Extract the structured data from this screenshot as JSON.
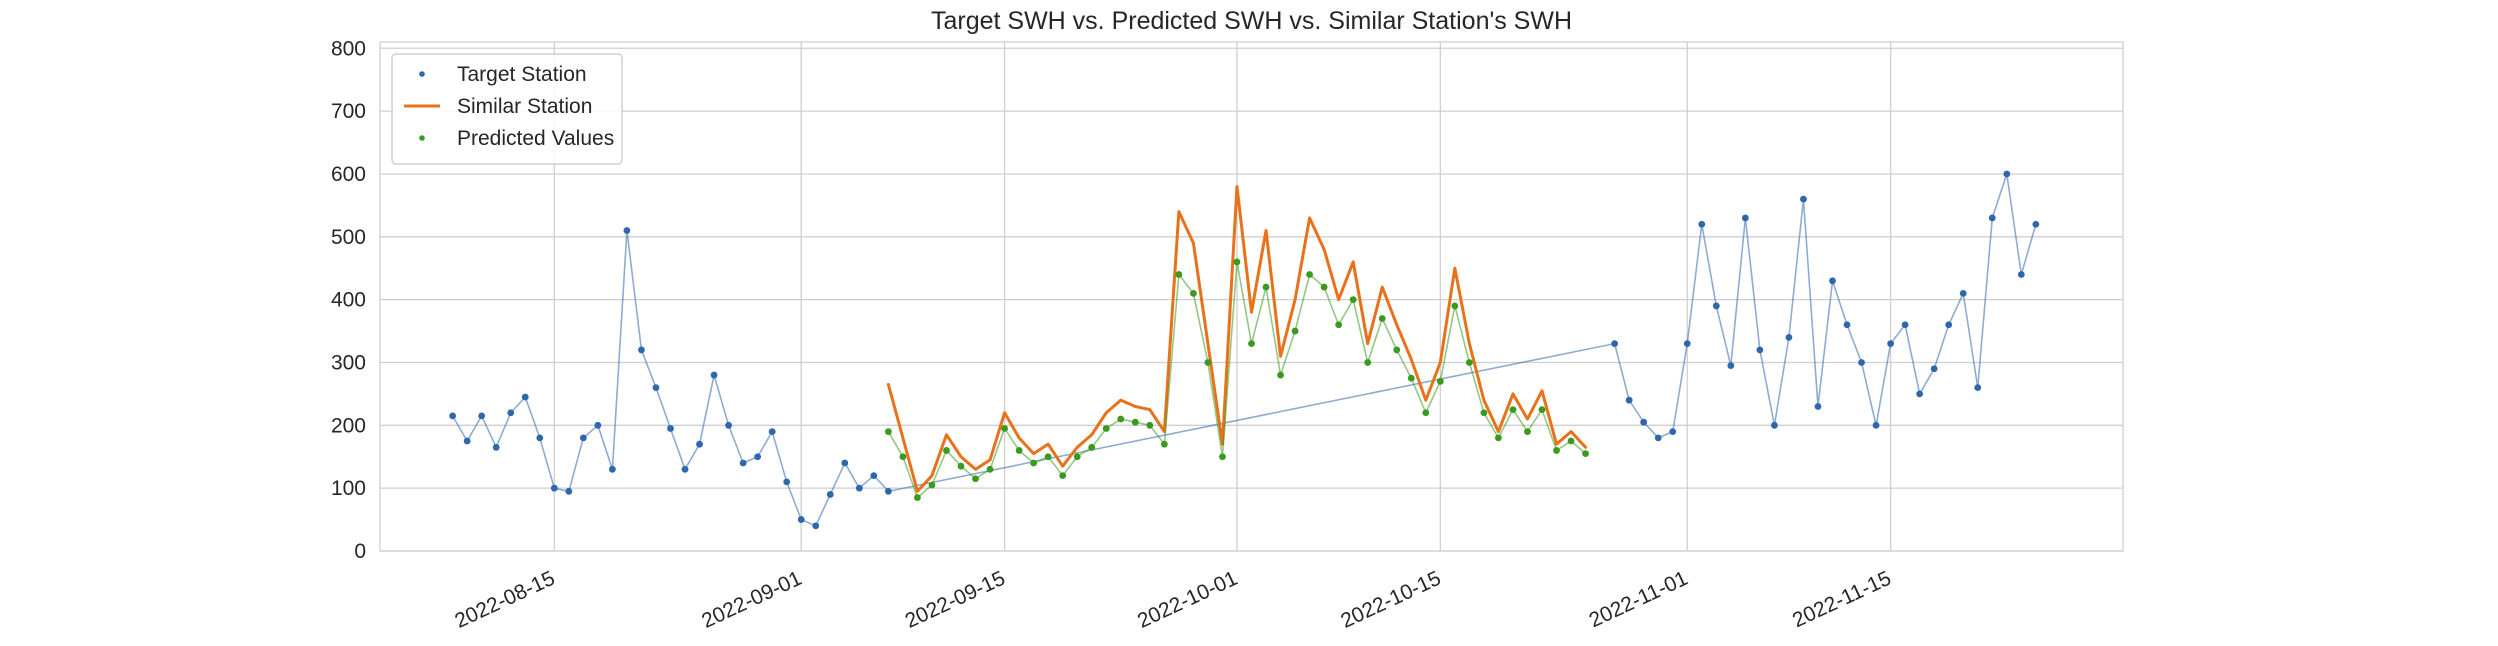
{
  "chart_data": {
    "type": "scatter",
    "title": "Target SWH vs. Predicted SWH vs. Similar Station's SWH",
    "xlabel": "",
    "ylabel": "",
    "xlim": [
      "2022-08-03",
      "2022-12-01"
    ],
    "ylim": [
      0,
      810
    ],
    "grid": true,
    "legend_position": "top-left",
    "x_tick_labels": [
      "2022-08-15",
      "2022-09-01",
      "2022-09-15",
      "2022-10-01",
      "2022-10-15",
      "2022-11-01",
      "2022-11-15"
    ],
    "y_tick_labels": [
      "0",
      "100",
      "200",
      "300",
      "400",
      "500",
      "600",
      "700",
      "800"
    ],
    "y_ticks": [
      0,
      100,
      200,
      300,
      400,
      500,
      600,
      700,
      800
    ],
    "series": [
      {
        "name": "Target Station",
        "kind": "scatter",
        "color": "#2f67ad",
        "x": [
          "2022-08-08",
          "2022-08-09",
          "2022-08-10",
          "2022-08-11",
          "2022-08-12",
          "2022-08-13",
          "2022-08-14",
          "2022-08-15",
          "2022-08-16",
          "2022-08-17",
          "2022-08-18",
          "2022-08-19",
          "2022-08-20",
          "2022-08-21",
          "2022-08-22",
          "2022-08-23",
          "2022-08-24",
          "2022-08-25",
          "2022-08-26",
          "2022-08-27",
          "2022-08-28",
          "2022-08-29",
          "2022-08-30",
          "2022-08-31",
          "2022-09-01",
          "2022-09-02",
          "2022-09-03",
          "2022-09-04",
          "2022-09-05",
          "2022-09-06",
          "2022-09-07",
          "2022-10-27",
          "2022-10-28",
          "2022-10-29",
          "2022-10-30",
          "2022-10-31",
          "2022-11-01",
          "2022-11-02",
          "2022-11-03",
          "2022-11-04",
          "2022-11-05",
          "2022-11-06",
          "2022-11-07",
          "2022-11-08",
          "2022-11-09",
          "2022-11-10",
          "2022-11-11",
          "2022-11-12",
          "2022-11-13",
          "2022-11-14",
          "2022-11-15",
          "2022-11-16",
          "2022-11-17",
          "2022-11-18",
          "2022-11-19",
          "2022-11-20",
          "2022-11-21",
          "2022-11-22",
          "2022-11-23",
          "2022-11-24",
          "2022-11-25"
        ],
        "y": [
          215,
          175,
          215,
          165,
          220,
          245,
          180,
          100,
          95,
          180,
          200,
          130,
          510,
          320,
          260,
          195,
          130,
          170,
          280,
          200,
          140,
          150,
          190,
          110,
          50,
          40,
          90,
          140,
          100,
          120,
          95,
          330,
          240,
          205,
          180,
          190,
          330,
          520,
          390,
          295,
          530,
          320,
          200,
          340,
          560,
          230,
          430,
          360,
          300,
          200,
          330,
          360,
          250,
          290,
          360,
          410,
          260,
          530,
          600,
          440,
          520
        ]
      },
      {
        "name": "Similar Station",
        "kind": "line",
        "color": "#e8711a",
        "x": [
          "2022-09-07",
          "2022-09-08",
          "2022-09-09",
          "2022-09-10",
          "2022-09-11",
          "2022-09-12",
          "2022-09-13",
          "2022-09-14",
          "2022-09-15",
          "2022-09-16",
          "2022-09-17",
          "2022-09-18",
          "2022-09-19",
          "2022-09-20",
          "2022-09-21",
          "2022-09-22",
          "2022-09-23",
          "2022-09-24",
          "2022-09-25",
          "2022-09-26",
          "2022-09-27",
          "2022-09-28",
          "2022-09-29",
          "2022-09-30",
          "2022-10-01",
          "2022-10-02",
          "2022-10-03",
          "2022-10-04",
          "2022-10-05",
          "2022-10-06",
          "2022-10-07",
          "2022-10-08",
          "2022-10-09",
          "2022-10-10",
          "2022-10-11",
          "2022-10-12",
          "2022-10-13",
          "2022-10-14",
          "2022-10-15",
          "2022-10-16",
          "2022-10-17",
          "2022-10-18",
          "2022-10-19",
          "2022-10-20",
          "2022-10-21",
          "2022-10-22",
          "2022-10-23",
          "2022-10-24",
          "2022-10-25"
        ],
        "y": [
          265,
          180,
          95,
          120,
          185,
          150,
          130,
          145,
          220,
          180,
          155,
          170,
          135,
          165,
          185,
          220,
          240,
          230,
          225,
          190,
          540,
          490,
          330,
          170,
          580,
          380,
          510,
          310,
          400,
          530,
          480,
          400,
          460,
          330,
          420,
          360,
          305,
          240,
          300,
          450,
          330,
          240,
          190,
          250,
          210,
          255,
          170,
          190,
          165
        ]
      },
      {
        "name": "Predicted Values",
        "kind": "scatter",
        "color": "#3a9a1f",
        "x": [
          "2022-09-07",
          "2022-09-08",
          "2022-09-09",
          "2022-09-10",
          "2022-09-11",
          "2022-09-12",
          "2022-09-13",
          "2022-09-14",
          "2022-09-15",
          "2022-09-16",
          "2022-09-17",
          "2022-09-18",
          "2022-09-19",
          "2022-09-20",
          "2022-09-21",
          "2022-09-22",
          "2022-09-23",
          "2022-09-24",
          "2022-09-25",
          "2022-09-26",
          "2022-09-27",
          "2022-09-28",
          "2022-09-29",
          "2022-09-30",
          "2022-10-01",
          "2022-10-02",
          "2022-10-03",
          "2022-10-04",
          "2022-10-05",
          "2022-10-06",
          "2022-10-07",
          "2022-10-08",
          "2022-10-09",
          "2022-10-10",
          "2022-10-11",
          "2022-10-12",
          "2022-10-13",
          "2022-10-14",
          "2022-10-15",
          "2022-10-16",
          "2022-10-17",
          "2022-10-18",
          "2022-10-19",
          "2022-10-20",
          "2022-10-21",
          "2022-10-22",
          "2022-10-23",
          "2022-10-24",
          "2022-10-25"
        ],
        "y": [
          190,
          150,
          85,
          105,
          160,
          135,
          115,
          130,
          195,
          160,
          140,
          150,
          120,
          150,
          165,
          195,
          210,
          205,
          200,
          170,
          440,
          410,
          300,
          150,
          460,
          330,
          420,
          280,
          350,
          440,
          420,
          360,
          400,
          300,
          370,
          320,
          275,
          220,
          270,
          390,
          300,
          220,
          180,
          225,
          190,
          225,
          160,
          175,
          155
        ]
      }
    ]
  }
}
